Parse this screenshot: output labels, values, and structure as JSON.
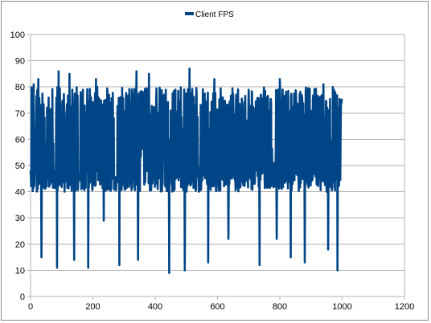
{
  "chart_data": {
    "type": "line",
    "legend": {
      "position": "top-center"
    },
    "series": [
      {
        "name": "Client FPS",
        "color": "#004586",
        "n": 1000
      }
    ],
    "xlim": [
      0,
      1200
    ],
    "ylim": [
      0,
      100
    ],
    "xticks": [
      0,
      200,
      400,
      600,
      800,
      1000,
      1200
    ],
    "yticks": [
      0,
      10,
      20,
      30,
      40,
      50,
      60,
      70,
      80,
      90,
      100
    ],
    "grid": {
      "horizontal": true,
      "vertical": false,
      "color": "#b3b3b3"
    },
    "typical_range": [
      40,
      80
    ],
    "dips": [
      {
        "x": 35,
        "y": 15
      },
      {
        "x": 85,
        "y": 11
      },
      {
        "x": 140,
        "y": 14
      },
      {
        "x": 185,
        "y": 11
      },
      {
        "x": 235,
        "y": 29
      },
      {
        "x": 285,
        "y": 12
      },
      {
        "x": 345,
        "y": 14
      },
      {
        "x": 445,
        "y": 9
      },
      {
        "x": 495,
        "y": 10
      },
      {
        "x": 570,
        "y": 13
      },
      {
        "x": 635,
        "y": 22
      },
      {
        "x": 735,
        "y": 12
      },
      {
        "x": 790,
        "y": 22
      },
      {
        "x": 835,
        "y": 15
      },
      {
        "x": 880,
        "y": 13
      },
      {
        "x": 955,
        "y": 18
      },
      {
        "x": 985,
        "y": 10
      }
    ],
    "peaks": [
      {
        "x": 10,
        "y": 81
      },
      {
        "x": 25,
        "y": 83
      },
      {
        "x": 90,
        "y": 86
      },
      {
        "x": 125,
        "y": 85
      },
      {
        "x": 210,
        "y": 83
      },
      {
        "x": 340,
        "y": 86
      },
      {
        "x": 380,
        "y": 85
      },
      {
        "x": 510,
        "y": 87
      },
      {
        "x": 590,
        "y": 83
      },
      {
        "x": 800,
        "y": 83
      },
      {
        "x": 940,
        "y": 81
      },
      {
        "x": 970,
        "y": 80
      }
    ]
  }
}
